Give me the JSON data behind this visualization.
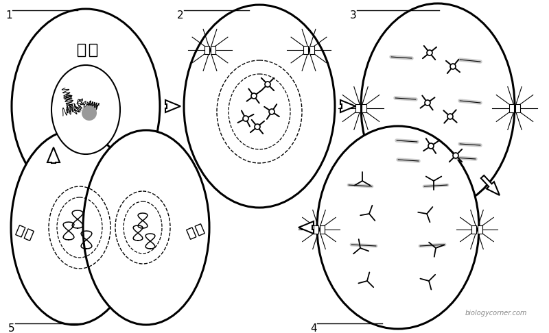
{
  "bg_color": "#ffffff",
  "line_color": "#000000",
  "gray_chrom": "#bbbbbb",
  "watermark": "biologycorner.com",
  "cell_lw": 2.2,
  "figsize": [
    8.0,
    4.86
  ],
  "dpi": 100
}
